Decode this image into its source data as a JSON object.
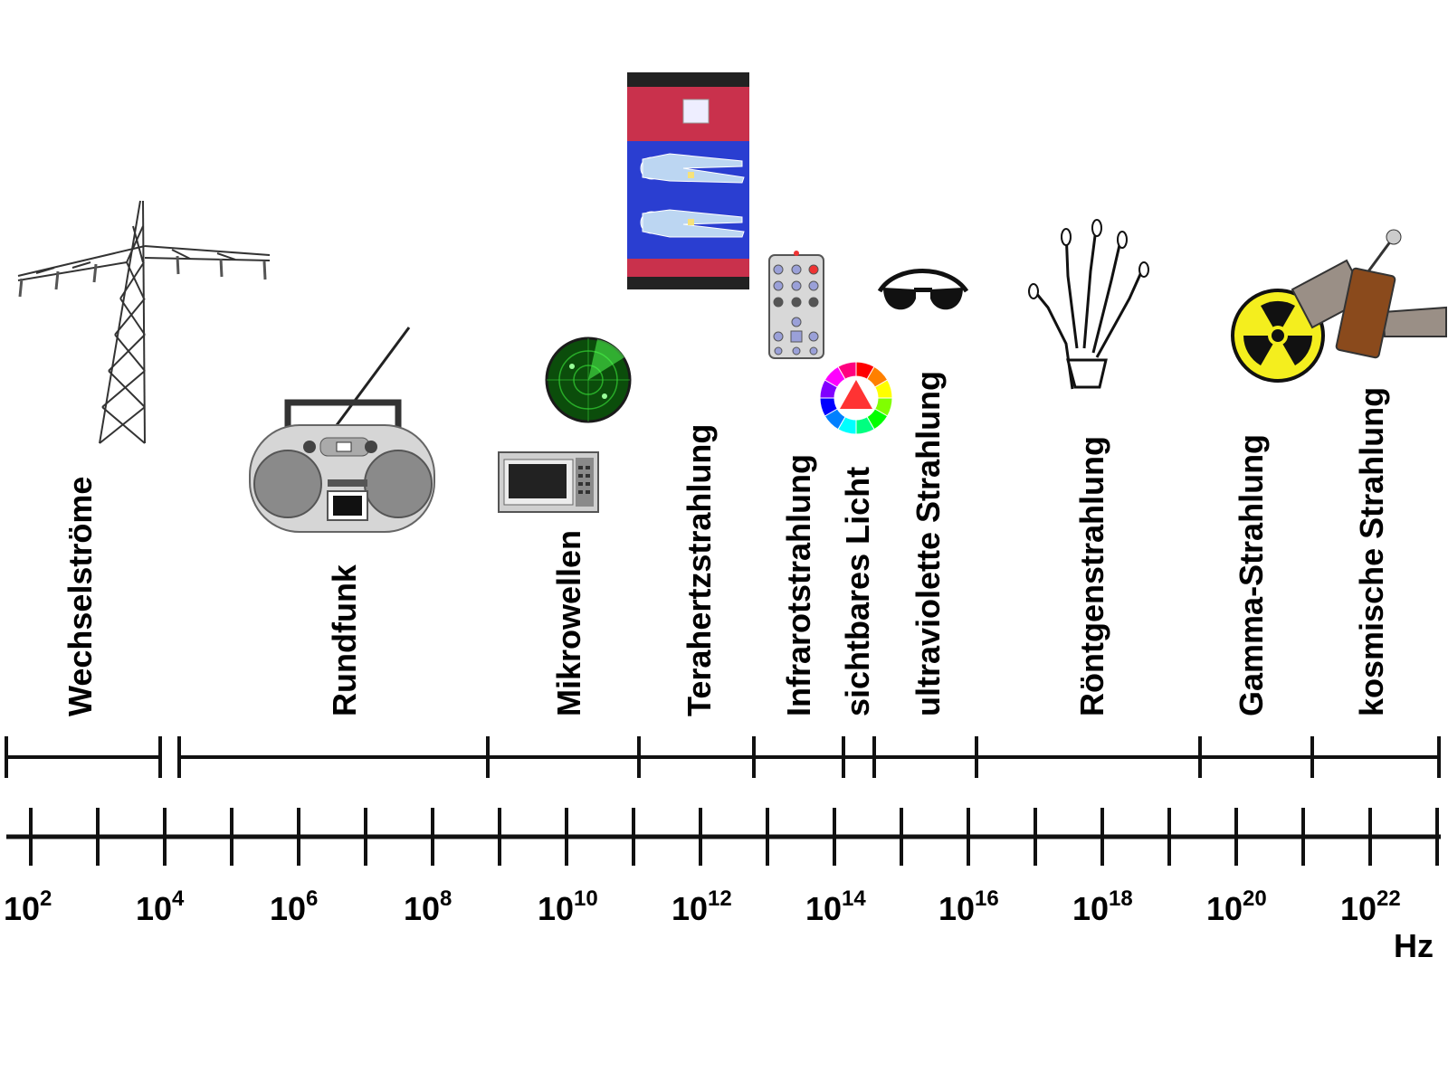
{
  "diagram": {
    "unit": "Hz",
    "scale": "log",
    "colors": {
      "line": "#000000",
      "background": "#ffffff"
    },
    "bands": [
      {
        "label": "Wechselströme",
        "icon": "power-pylon-icon"
      },
      {
        "label": "Rundfunk",
        "icon": "radio-boombox-icon"
      },
      {
        "label": "Mikrowellen",
        "icon": "microwave-oven-icon"
      },
      {
        "label": "Terahertzstrahlung",
        "icon": "body-scanner-icon"
      },
      {
        "label": "Infrarotstrahlung",
        "icon": "remote-control-icon"
      },
      {
        "label": "sichtbares Licht",
        "icon": "color-wheel-icon"
      },
      {
        "label": "ultraviolette Strahlung",
        "icon": "sunglasses-icon"
      },
      {
        "label": "Röntgenstrahlung",
        "icon": "xray-hand-icon"
      },
      {
        "label": "Gamma-Strahlung",
        "icon": "radiation-symbol-icon"
      },
      {
        "label": "kosmische Strahlung",
        "icon": "satellite-icon"
      }
    ],
    "tick_labels": [
      {
        "base": "10",
        "exp": "2"
      },
      {
        "base": "10",
        "exp": "4"
      },
      {
        "base": "10",
        "exp": "6"
      },
      {
        "base": "10",
        "exp": "8"
      },
      {
        "base": "10",
        "exp": "10"
      },
      {
        "base": "10",
        "exp": "12"
      },
      {
        "base": "10",
        "exp": "14"
      },
      {
        "base": "10",
        "exp": "16"
      },
      {
        "base": "10",
        "exp": "18"
      },
      {
        "base": "10",
        "exp": "20"
      },
      {
        "base": "10",
        "exp": "22"
      }
    ]
  }
}
